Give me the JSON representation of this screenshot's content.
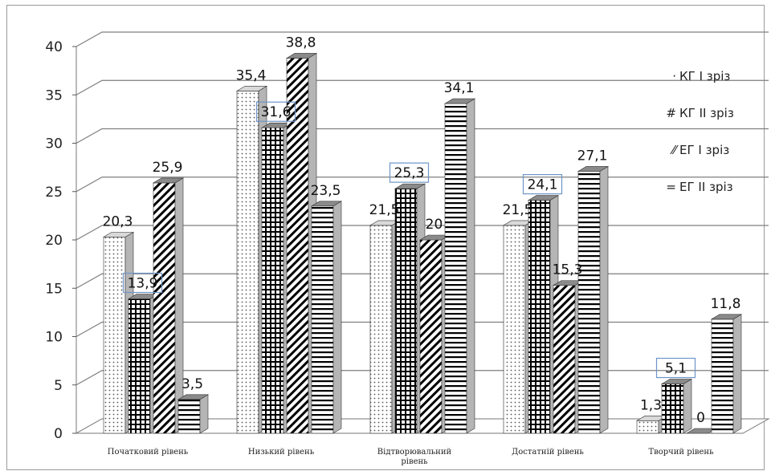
{
  "chart_data": {
    "type": "bar",
    "categories": [
      "Початковий рівень",
      "Низький рівень",
      "Відтворювальний рівень",
      "Достатній рівень",
      "Творчий рівень"
    ],
    "series": [
      {
        "name": "КГ І зріз",
        "values": [
          20.3,
          35.4,
          21.5,
          21.5,
          1.3
        ],
        "labels": [
          "20,3",
          "35,4",
          "21,5",
          "21,5",
          "1,3"
        ],
        "pattern": "dots"
      },
      {
        "name": "КГ ІІ зріз",
        "values": [
          13.9,
          31.6,
          25.3,
          24.1,
          5.1
        ],
        "labels": [
          "13,9",
          "31,6",
          "25,3",
          "24,1",
          "5,1"
        ],
        "pattern": "grid"
      },
      {
        "name": "ЕГ І зріз",
        "values": [
          25.9,
          38.8,
          20.0,
          15.3,
          0.0
        ],
        "labels": [
          "25,9",
          "38,8",
          "20",
          "15,3",
          "0"
        ],
        "pattern": "diagonal"
      },
      {
        "name": "ЕГ ІІ зріз",
        "values": [
          3.5,
          23.5,
          34.1,
          27.1,
          11.8
        ],
        "labels": [
          "3,5",
          "23,5",
          "34,1",
          "27,1",
          "11,8"
        ],
        "pattern": "horizontal"
      }
    ],
    "legend_glyphs": [
      "·",
      "#",
      "⁄⁄",
      "="
    ],
    "ylim": [
      0,
      40
    ],
    "yticks": [
      "0",
      "5",
      "10",
      "15",
      "20",
      "25",
      "30",
      "35",
      "40"
    ],
    "grid": true,
    "legend_position": "right",
    "title": "",
    "xlabel": "",
    "ylabel": ""
  }
}
